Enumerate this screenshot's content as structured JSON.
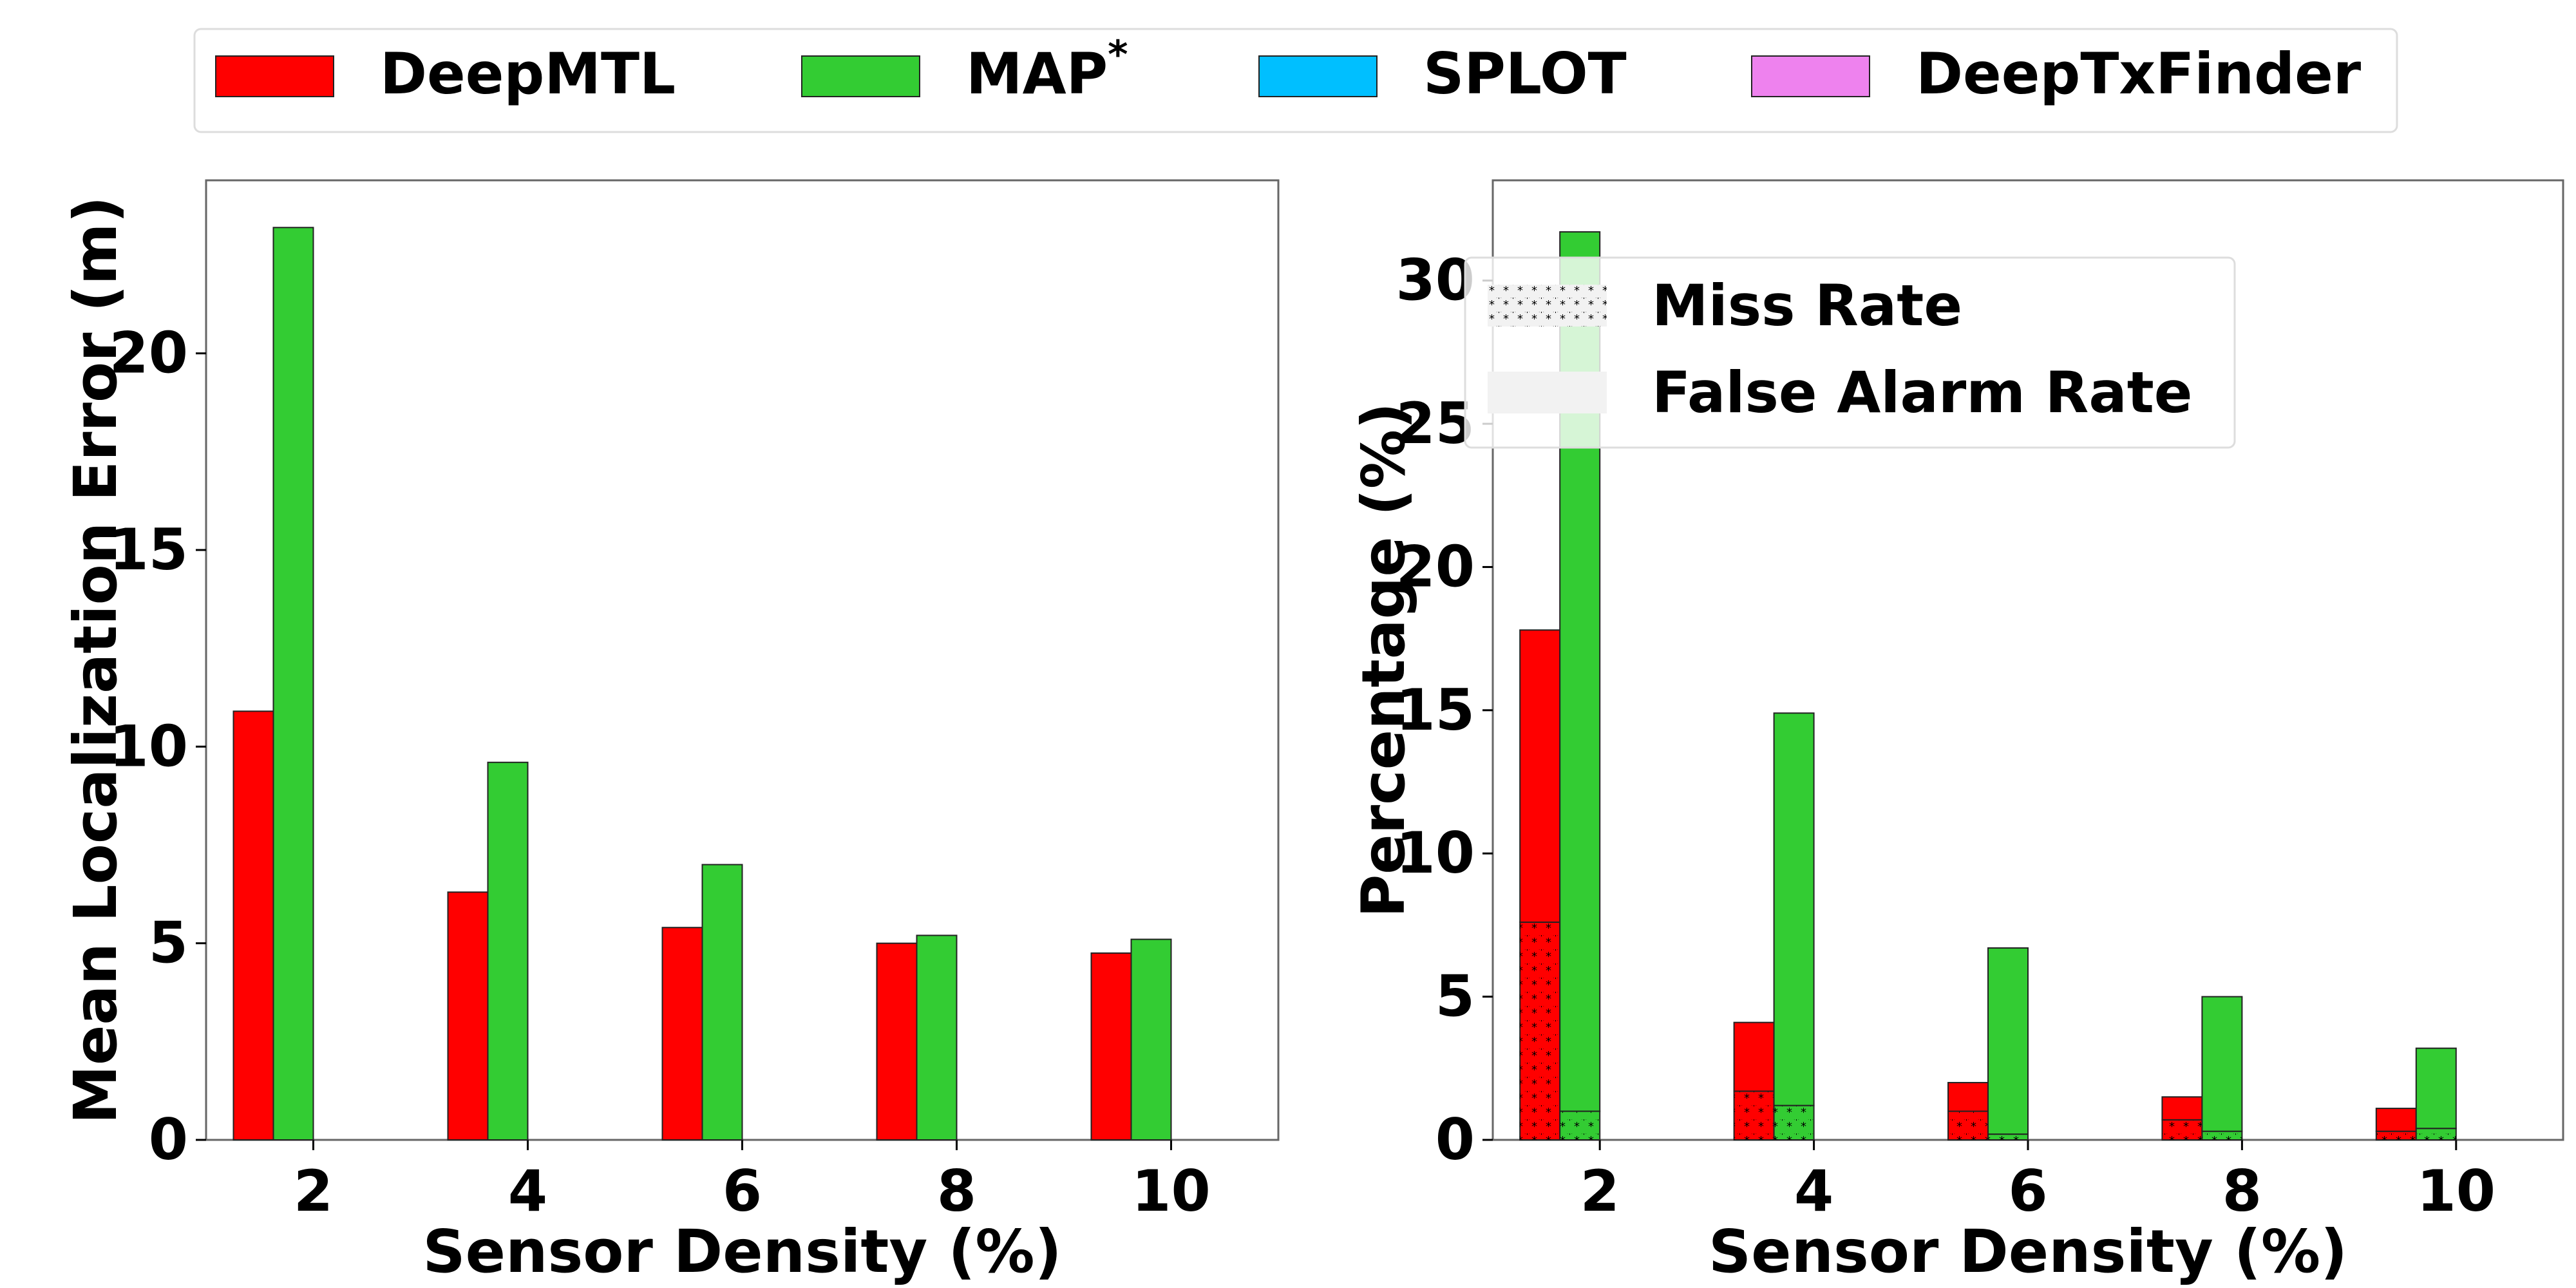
{
  "legend_top": {
    "items": [
      {
        "label": "DeepMTL",
        "color": "#ff0000"
      },
      {
        "label": "MAP",
        "sup": "*",
        "color": "#33cc33"
      },
      {
        "label": "SPLOT",
        "color": "#00bfff"
      },
      {
        "label": "DeepTxFinder",
        "color": "#ee82ee"
      }
    ]
  },
  "chart_data": [
    {
      "type": "bar",
      "xlabel": "Sensor Density (%)",
      "ylabel": "Mean Localization Error (m)",
      "categories": [
        "2",
        "4",
        "6",
        "8",
        "10"
      ],
      "ylim": [
        0,
        24.4
      ],
      "yticks": [
        0,
        5,
        10,
        15,
        20
      ],
      "grid": false,
      "series": [
        {
          "name": "DeepMTL",
          "color": "#ff0000",
          "values": [
            10.9,
            6.3,
            5.4,
            5.0,
            4.75
          ]
        },
        {
          "name": "MAP*",
          "color": "#33cc33",
          "values": [
            23.2,
            9.6,
            7.0,
            5.2,
            5.1
          ]
        },
        {
          "name": "SPLOT",
          "color": "#00bfff",
          "values": [
            0,
            0,
            0,
            0,
            0
          ]
        },
        {
          "name": "DeepTxFinder",
          "color": "#ee82ee",
          "values": [
            0,
            0,
            0,
            0,
            0
          ]
        }
      ]
    },
    {
      "type": "bar",
      "stacked": true,
      "xlabel": "Sensor Density (%)",
      "ylabel": "Percentage (%)",
      "categories": [
        "2",
        "4",
        "6",
        "8",
        "10"
      ],
      "ylim": [
        0,
        33.5
      ],
      "yticks": [
        0,
        5,
        10,
        15,
        20,
        25,
        30
      ],
      "grid": false,
      "legend": {
        "position": "top-left",
        "items": [
          {
            "label": "Miss Rate",
            "pattern": "stars"
          },
          {
            "label": "False Alarm Rate",
            "pattern": "plain"
          }
        ]
      },
      "series": [
        {
          "name": "DeepMTL",
          "color": "#ff0000",
          "miss_rate": [
            7.6,
            1.7,
            1.0,
            0.7,
            0.3
          ],
          "false_alarm_rate": [
            10.2,
            2.4,
            1.0,
            0.8,
            0.8
          ]
        },
        {
          "name": "MAP*",
          "color": "#33cc33",
          "miss_rate": [
            1.0,
            1.2,
            0.2,
            0.3,
            0.4
          ],
          "false_alarm_rate": [
            30.7,
            13.7,
            6.5,
            4.7,
            2.8
          ]
        },
        {
          "name": "SPLOT",
          "color": "#00bfff",
          "miss_rate": [
            0,
            0,
            0,
            0,
            0
          ],
          "false_alarm_rate": [
            0,
            0,
            0,
            0,
            0
          ]
        },
        {
          "name": "DeepTxFinder",
          "color": "#ee82ee",
          "miss_rate": [
            0,
            0,
            0,
            0,
            0
          ],
          "false_alarm_rate": [
            0,
            0,
            0,
            0,
            0
          ]
        }
      ]
    }
  ]
}
